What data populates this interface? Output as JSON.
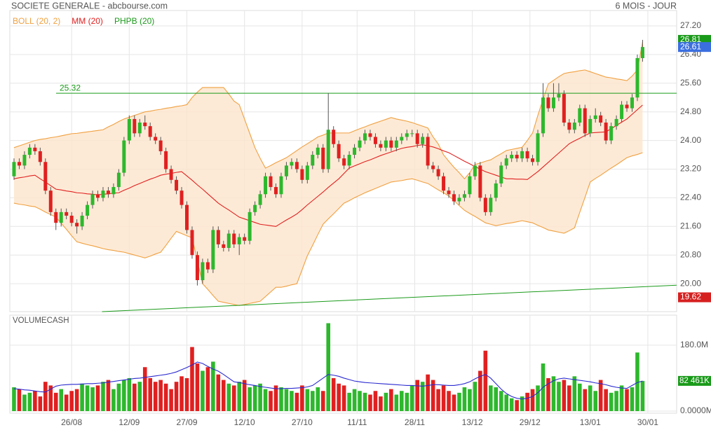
{
  "chart_data": {
    "type": "candlestick",
    "title": "SOCIETE GENERALE - abcbourse.com",
    "period": "6 MOIS - JOUR",
    "indicators": [
      {
        "name": "BOLL (20, 2)",
        "color": "#f0a040"
      },
      {
        "name": "MM (20)",
        "color": "#e02020"
      },
      {
        "name": "PHPB (20)",
        "color": "#1a9a1a"
      }
    ],
    "up_color": "#2db82d",
    "down_color": "#e02020",
    "xlim": [
      -0.8,
      126.5
    ],
    "xticks": [
      {
        "value": 11,
        "label": "26/08"
      },
      {
        "value": 22,
        "label": "12/09"
      },
      {
        "value": 33,
        "label": "27/09"
      },
      {
        "value": 44,
        "label": "12/10"
      },
      {
        "value": 55,
        "label": "27/10"
      },
      {
        "value": 65.5,
        "label": "11/11"
      },
      {
        "value": 76.5,
        "label": "28/11"
      },
      {
        "value": 87.5,
        "label": "13/12"
      },
      {
        "value": 98.5,
        "label": "29/12"
      },
      {
        "value": 110,
        "label": "13/01"
      },
      {
        "value": 121,
        "label": "30/01"
      }
    ],
    "ylim": [
      19.22,
      27.63
    ],
    "yticks": [
      {
        "value": 20.0,
        "label": "20.00"
      },
      {
        "value": 20.8,
        "label": "20.80"
      },
      {
        "value": 21.6,
        "label": "21.60"
      },
      {
        "value": 22.4,
        "label": "22.40"
      },
      {
        "value": 23.2,
        "label": "23.20"
      },
      {
        "value": 24.0,
        "label": "24.00"
      },
      {
        "value": 24.8,
        "label": "24.80"
      },
      {
        "value": 25.6,
        "label": "25.60"
      },
      {
        "value": 26.4,
        "label": "26.40"
      },
      {
        "value": 27.2,
        "label": "27.20"
      }
    ],
    "grid": true,
    "candles": [
      [
        23.0,
        23.5,
        22.9,
        23.4
      ],
      [
        23.4,
        23.5,
        23.2,
        23.3
      ],
      [
        23.3,
        23.7,
        23.2,
        23.6
      ],
      [
        23.6,
        23.9,
        23.5,
        23.8
      ],
      [
        23.8,
        23.9,
        23.6,
        23.7
      ],
      [
        23.7,
        23.8,
        23.3,
        23.4
      ],
      [
        23.4,
        23.5,
        22.5,
        22.6
      ],
      [
        22.6,
        22.7,
        21.9,
        22.0
      ],
      [
        22.0,
        22.1,
        21.5,
        21.7
      ],
      [
        21.7,
        22.1,
        21.6,
        22.0
      ],
      [
        22.0,
        22.1,
        21.8,
        21.9
      ],
      [
        21.9,
        22.0,
        21.6,
        21.7
      ],
      [
        21.7,
        21.8,
        21.4,
        21.6
      ],
      [
        21.6,
        22.0,
        21.5,
        21.9
      ],
      [
        21.9,
        22.3,
        21.8,
        22.2
      ],
      [
        22.2,
        22.6,
        22.1,
        22.5
      ],
      [
        22.5,
        22.6,
        22.3,
        22.4
      ],
      [
        22.4,
        22.7,
        22.3,
        22.6
      ],
      [
        22.6,
        22.7,
        22.4,
        22.5
      ],
      [
        22.5,
        22.8,
        22.4,
        22.7
      ],
      [
        22.7,
        23.2,
        22.6,
        23.1
      ],
      [
        23.1,
        24.1,
        23.0,
        24.0
      ],
      [
        24.0,
        24.7,
        23.9,
        24.6
      ],
      [
        24.6,
        24.7,
        24.1,
        24.2
      ],
      [
        24.2,
        24.6,
        24.1,
        24.5
      ],
      [
        24.5,
        24.7,
        24.3,
        24.4
      ],
      [
        24.4,
        24.5,
        24.0,
        24.1
      ],
      [
        24.1,
        24.2,
        23.9,
        24.0
      ],
      [
        24.0,
        24.1,
        23.6,
        23.7
      ],
      [
        23.7,
        23.8,
        23.1,
        23.2
      ],
      [
        23.2,
        23.3,
        22.8,
        22.9
      ],
      [
        22.9,
        23.0,
        22.5,
        22.6
      ],
      [
        22.6,
        22.7,
        22.1,
        22.2
      ],
      [
        22.2,
        22.3,
        21.4,
        21.5
      ],
      [
        21.5,
        21.6,
        20.7,
        20.8
      ],
      [
        20.8,
        20.9,
        19.95,
        20.1
      ],
      [
        20.1,
        20.7,
        20.0,
        20.6
      ],
      [
        20.6,
        20.7,
        20.3,
        20.4
      ],
      [
        20.4,
        21.6,
        20.3,
        21.5
      ],
      [
        21.5,
        21.6,
        21.0,
        21.1
      ],
      [
        21.1,
        21.2,
        20.9,
        21.0
      ],
      [
        21.0,
        21.5,
        20.9,
        21.4
      ],
      [
        21.4,
        21.5,
        21.0,
        21.1
      ],
      [
        21.1,
        21.4,
        20.8,
        21.3
      ],
      [
        21.3,
        21.4,
        21.1,
        21.2
      ],
      [
        21.2,
        22.1,
        21.1,
        22.0
      ],
      [
        22.0,
        22.3,
        21.9,
        22.2
      ],
      [
        22.2,
        22.6,
        22.1,
        22.5
      ],
      [
        22.5,
        23.1,
        22.4,
        23.0
      ],
      [
        23.0,
        23.1,
        22.6,
        22.7
      ],
      [
        22.7,
        22.8,
        22.4,
        22.5
      ],
      [
        22.5,
        23.1,
        22.4,
        23.0
      ],
      [
        23.0,
        23.4,
        22.9,
        23.3
      ],
      [
        23.3,
        23.5,
        23.2,
        23.4
      ],
      [
        23.4,
        23.5,
        23.1,
        23.2
      ],
      [
        23.2,
        23.3,
        22.8,
        22.9
      ],
      [
        22.9,
        23.4,
        22.8,
        23.3
      ],
      [
        23.3,
        23.7,
        23.2,
        23.6
      ],
      [
        23.6,
        23.9,
        23.5,
        23.8
      ],
      [
        23.8,
        23.9,
        23.1,
        23.2
      ],
      [
        23.2,
        25.32,
        23.1,
        24.3
      ],
      [
        24.3,
        24.4,
        23.8,
        23.9
      ],
      [
        23.9,
        24.0,
        23.4,
        23.5
      ],
      [
        23.5,
        23.6,
        23.2,
        23.3
      ],
      [
        23.3,
        23.7,
        23.2,
        23.6
      ],
      [
        23.6,
        23.9,
        23.5,
        23.8
      ],
      [
        23.8,
        24.1,
        23.7,
        24.0
      ],
      [
        24.0,
        24.3,
        23.9,
        24.2
      ],
      [
        24.2,
        24.3,
        24.0,
        24.1
      ],
      [
        24.1,
        24.2,
        23.8,
        23.9
      ],
      [
        23.9,
        24.0,
        23.7,
        23.8
      ],
      [
        23.8,
        24.1,
        23.7,
        24.0
      ],
      [
        24.0,
        24.1,
        23.7,
        23.8
      ],
      [
        23.8,
        24.1,
        23.7,
        24.0
      ],
      [
        24.0,
        24.2,
        23.9,
        24.1
      ],
      [
        24.1,
        24.3,
        24.0,
        24.2
      ],
      [
        24.2,
        24.3,
        24.1,
        24.2
      ],
      [
        24.2,
        24.3,
        23.8,
        23.9
      ],
      [
        23.9,
        24.2,
        23.8,
        24.1
      ],
      [
        24.1,
        24.2,
        23.2,
        23.3
      ],
      [
        23.3,
        23.4,
        23.1,
        23.2
      ],
      [
        23.2,
        23.3,
        22.9,
        23.0
      ],
      [
        23.0,
        23.1,
        22.5,
        22.6
      ],
      [
        22.6,
        22.7,
        22.4,
        22.5
      ],
      [
        22.5,
        22.6,
        22.2,
        22.3
      ],
      [
        22.3,
        22.5,
        22.2,
        22.4
      ],
      [
        22.4,
        22.6,
        22.3,
        22.5
      ],
      [
        22.5,
        23.1,
        22.4,
        23.0
      ],
      [
        23.0,
        23.4,
        22.9,
        23.3
      ],
      [
        23.3,
        23.4,
        22.3,
        22.4
      ],
      [
        22.4,
        22.5,
        21.9,
        22.0
      ],
      [
        22.0,
        22.5,
        21.9,
        22.4
      ],
      [
        22.4,
        22.9,
        22.3,
        22.8
      ],
      [
        22.8,
        23.4,
        22.7,
        23.3
      ],
      [
        23.3,
        23.6,
        23.2,
        23.5
      ],
      [
        23.5,
        23.7,
        23.4,
        23.6
      ],
      [
        23.6,
        23.7,
        23.4,
        23.5
      ],
      [
        23.5,
        23.8,
        23.4,
        23.7
      ],
      [
        23.7,
        23.8,
        23.4,
        23.5
      ],
      [
        23.5,
        23.6,
        23.3,
        23.4
      ],
      [
        23.4,
        24.3,
        23.3,
        24.2
      ],
      [
        24.2,
        25.6,
        24.1,
        25.2
      ],
      [
        25.2,
        25.3,
        24.8,
        24.9
      ],
      [
        24.9,
        25.6,
        24.8,
        25.2
      ],
      [
        25.2,
        25.6,
        25.1,
        25.3
      ],
      [
        25.3,
        25.4,
        24.4,
        24.5
      ],
      [
        24.5,
        24.6,
        24.2,
        24.3
      ],
      [
        24.3,
        24.6,
        24.2,
        24.5
      ],
      [
        24.5,
        25.0,
        24.4,
        24.9
      ],
      [
        24.9,
        25.0,
        24.1,
        24.2
      ],
      [
        24.2,
        24.7,
        24.1,
        24.6
      ],
      [
        24.6,
        24.9,
        24.5,
        24.7
      ],
      [
        24.7,
        24.8,
        24.4,
        24.5
      ],
      [
        24.5,
        24.6,
        23.9,
        24.0
      ],
      [
        24.0,
        24.5,
        23.9,
        24.4
      ],
      [
        24.4,
        24.7,
        24.3,
        24.6
      ],
      [
        24.6,
        25.1,
        24.5,
        25.0
      ],
      [
        25.0,
        25.1,
        24.8,
        24.9
      ],
      [
        24.9,
        25.3,
        24.8,
        25.2
      ],
      [
        25.2,
        26.4,
        25.1,
        26.3
      ],
      [
        26.3,
        26.81,
        26.2,
        26.61
      ]
    ],
    "boll_upper": [
      23.8,
      23.85,
      23.9,
      23.95,
      24.0,
      24.03,
      24.05,
      24.08,
      24.1,
      24.13,
      24.16,
      24.19,
      24.2,
      24.22,
      24.24,
      24.26,
      24.28,
      24.3,
      24.38,
      24.45,
      24.53,
      24.6,
      24.65,
      24.7,
      24.75,
      24.8,
      24.82,
      24.85,
      24.87,
      24.9,
      24.92,
      24.95,
      24.97,
      25.0,
      25.2,
      25.35,
      25.48,
      25.48,
      25.48,
      25.48,
      25.48,
      25.3,
      25.1,
      25.0,
      24.6,
      24.2,
      23.8,
      23.5,
      23.23,
      23.3,
      23.38,
      23.45,
      23.52,
      23.62,
      23.72,
      23.82,
      23.91,
      24.0,
      24.1,
      24.15,
      24.21,
      24.21,
      24.21,
      24.21,
      24.21,
      24.27,
      24.33,
      24.38,
      24.44,
      24.49,
      24.54,
      24.59,
      24.64,
      24.6,
      24.57,
      24.54,
      24.5,
      24.45,
      24.4,
      24.35,
      24.1,
      23.9,
      23.6,
      23.42,
      23.25,
      23.1,
      22.93,
      23.1,
      23.33,
      23.37,
      23.42,
      23.46,
      23.55,
      23.63,
      23.72,
      23.75,
      23.78,
      23.81,
      24.0,
      24.21,
      24.7,
      25.15,
      25.58,
      25.68,
      25.78,
      25.87,
      25.9,
      25.92,
      25.95,
      25.97,
      25.92,
      25.87,
      25.82,
      25.77,
      25.75,
      25.72,
      25.7,
      25.67,
      25.8,
      25.97,
      26.75
    ],
    "boll_lower": [
      22.25,
      22.22,
      22.2,
      22.17,
      22.15,
      22.08,
      22.0,
      21.93,
      21.86,
      21.69,
      21.52,
      21.34,
      21.17,
      21.13,
      21.09,
      21.06,
      21.02,
      20.98,
      20.95,
      20.93,
      20.9,
      20.88,
      20.84,
      20.8,
      20.76,
      20.72,
      20.77,
      20.83,
      20.88,
      21.07,
      21.27,
      21.46,
      21.4,
      21.34,
      21.28,
      20.64,
      20.0,
      19.84,
      19.67,
      19.51,
      19.48,
      19.45,
      19.42,
      19.39,
      19.42,
      19.45,
      19.48,
      19.51,
      19.64,
      19.77,
      19.9,
      19.9,
      19.93,
      19.97,
      20.0,
      20.39,
      20.78,
      21.07,
      21.37,
      21.66,
      21.81,
      21.95,
      22.1,
      22.25,
      22.32,
      22.4,
      22.47,
      22.54,
      22.6,
      22.66,
      22.72,
      22.78,
      22.84,
      22.86,
      22.88,
      22.91,
      22.93,
      22.89,
      22.84,
      22.8,
      22.71,
      22.62,
      22.54,
      22.45,
      22.32,
      22.18,
      22.05,
      21.96,
      21.88,
      21.79,
      21.7,
      21.66,
      21.62,
      21.65,
      21.68,
      21.7,
      21.73,
      21.76,
      21.73,
      21.7,
      21.63,
      21.57,
      21.5,
      21.47,
      21.44,
      21.41,
      21.48,
      21.56,
      21.99,
      22.41,
      22.84,
      22.94,
      23.03,
      23.13,
      23.23,
      23.32,
      23.42,
      23.52,
      23.57,
      23.61,
      23.66
    ],
    "mm": [
      22.93,
      22.96,
      22.98,
      23.01,
      23.03,
      22.93,
      22.84,
      22.74,
      22.64,
      22.62,
      22.59,
      22.57,
      22.54,
      22.53,
      22.51,
      22.5,
      22.48,
      22.5,
      22.51,
      22.53,
      22.54,
      22.61,
      22.67,
      22.74,
      22.8,
      22.86,
      22.92,
      22.97,
      23.03,
      23.06,
      23.08,
      23.11,
      23.13,
      23.01,
      22.89,
      22.76,
      22.64,
      22.51,
      22.38,
      22.25,
      22.15,
      22.06,
      21.96,
      21.86,
      21.81,
      21.76,
      21.71,
      21.66,
      21.64,
      21.62,
      21.6,
      21.69,
      21.78,
      21.86,
      21.95,
      22.07,
      22.2,
      22.32,
      22.44,
      22.56,
      22.69,
      22.81,
      22.93,
      23.08,
      23.23,
      23.29,
      23.35,
      23.41,
      23.46,
      23.52,
      23.58,
      23.63,
      23.68,
      23.73,
      23.78,
      23.81,
      23.83,
      23.86,
      23.88,
      23.85,
      23.82,
      23.77,
      23.71,
      23.66,
      23.58,
      23.5,
      23.42,
      23.35,
      23.27,
      23.2,
      23.13,
      23.08,
      23.03,
      22.98,
      22.93,
      22.93,
      22.92,
      22.92,
      22.91,
      23.02,
      23.13,
      23.26,
      23.39,
      23.52,
      23.65,
      23.78,
      23.91,
      23.99,
      24.06,
      24.14,
      24.21,
      24.22,
      24.23,
      24.24,
      24.33,
      24.42,
      24.51,
      24.6,
      24.73,
      24.86,
      24.99
    ],
    "resistance": {
      "value": 25.32,
      "label": "25.32",
      "color": "#1a9a1a"
    },
    "trendline": {
      "from": [
        16.8,
        19.22
      ],
      "to": [
        126.7,
        19.96
      ],
      "color": "#1a9a1a"
    },
    "price_markers": [
      {
        "value": 26.81,
        "color": "#1a9a1a"
      },
      {
        "value": 26.61,
        "color": "#3b6fe0"
      },
      {
        "value": 19.62,
        "color": "#d62020"
      }
    ],
    "volume": {
      "title": "VOLUMECASH",
      "ylim": [
        0,
        262
      ],
      "yticks": [
        {
          "value": 0,
          "label": "0.0000M"
        },
        {
          "value": 180,
          "label": "180.0M"
        }
      ],
      "values": [
        65,
        60,
        45,
        50,
        55,
        40,
        80,
        70,
        50,
        60,
        45,
        55,
        60,
        75,
        70,
        65,
        70,
        80,
        85,
        60,
        75,
        85,
        90,
        75,
        80,
        120,
        90,
        80,
        85,
        75,
        60,
        80,
        95,
        90,
        175,
        130,
        110,
        120,
        135,
        100,
        85,
        75,
        70,
        80,
        85,
        65,
        70,
        75,
        60,
        55,
        70,
        65,
        60,
        55,
        50,
        70,
        60,
        55,
        65,
        55,
        240,
        90,
        75,
        70,
        50,
        60,
        55,
        50,
        45,
        55,
        40,
        50,
        60,
        45,
        55,
        50,
        70,
        85,
        80,
        100,
        85,
        60,
        70,
        55,
        45,
        50,
        65,
        60,
        80,
        110,
        165,
        70,
        65,
        55,
        45,
        35,
        30,
        40,
        50,
        60,
        70,
        130,
        90,
        95,
        80,
        85,
        70,
        95,
        75,
        60,
        70,
        55,
        85,
        60,
        50,
        55,
        70,
        60,
        65,
        160,
        82.461
      ],
      "ma": [
        61,
        60,
        58,
        57,
        55,
        53,
        52,
        60,
        68,
        71,
        72,
        73,
        73,
        74,
        75,
        75,
        76,
        77,
        79,
        81,
        83,
        85,
        87,
        89,
        90,
        92,
        94,
        96,
        98,
        100,
        103,
        107,
        113,
        119,
        126,
        134,
        130,
        122,
        115,
        109,
        100,
        90,
        80,
        78,
        75,
        72,
        70,
        67,
        65,
        63,
        61,
        61,
        62,
        62,
        63,
        64,
        66,
        70,
        80,
        90,
        100,
        98,
        95,
        90,
        86,
        82,
        80,
        78,
        77,
        76,
        75,
        74,
        73,
        72,
        71,
        70,
        70,
        69,
        68,
        70,
        72,
        72,
        71,
        70,
        70,
        72,
        75,
        80,
        88,
        95,
        100,
        90,
        75,
        60,
        48,
        40,
        35,
        33,
        35,
        40,
        50,
        65,
        75,
        83,
        88,
        90,
        88,
        86,
        84,
        82,
        80,
        77,
        75,
        72,
        68,
        65,
        63,
        62,
        70,
        78,
        82
      ],
      "ma_color": "#2a2ad0",
      "last": {
        "value": 82.461,
        "label": "82 461K",
        "color": "#1a9a1a"
      }
    }
  }
}
